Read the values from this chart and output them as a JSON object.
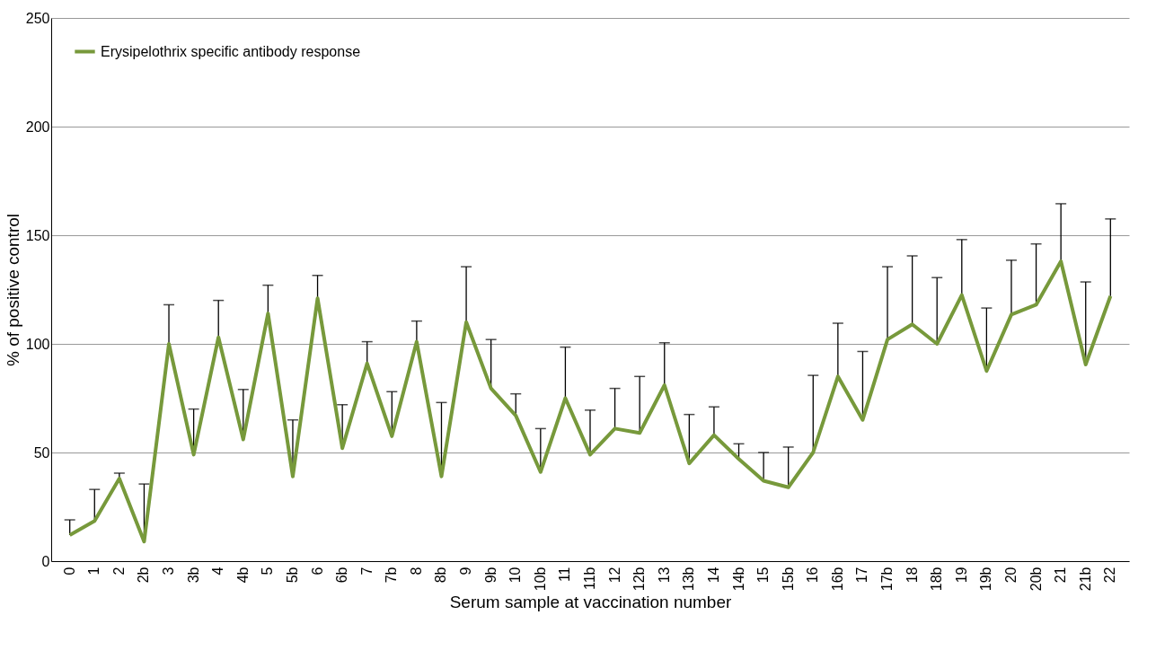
{
  "chart_data": {
    "type": "line",
    "xlabel": "Serum sample at vaccination number",
    "ylabel": "% of positive control",
    "categories": [
      "0",
      "1",
      "2",
      "2b",
      "3",
      "3b",
      "4",
      "4b",
      "5",
      "5b",
      "6",
      "6b",
      "7",
      "7b",
      "8",
      "8b",
      "9",
      "9b",
      "10",
      "10b",
      "11",
      "11b",
      "12",
      "12b",
      "13",
      "13b",
      "14",
      "14b",
      "15",
      "15b",
      "16",
      "16b",
      "17",
      "17b",
      "18",
      "18b",
      "19",
      "19b",
      "20",
      "20b",
      "21",
      "21b",
      "22"
    ],
    "series": [
      {
        "name": "Erysipelothrix specific antibody response",
        "color": "#77993b",
        "values": [
          12,
          18.5,
          38,
          9,
          100,
          49,
          103,
          56,
          114,
          39,
          121,
          52,
          91,
          57.5,
          101,
          39,
          110,
          79.5,
          67,
          41,
          75,
          49,
          61,
          59,
          81,
          45,
          58,
          47,
          37,
          34,
          50,
          85,
          65,
          102,
          109,
          100,
          122.5,
          87.5,
          113.5,
          118,
          138,
          90.5,
          122
        ],
        "errors": [
          [
            12,
            19
          ],
          [
            18.5,
            33
          ],
          [
            38,
            40.5
          ],
          [
            9,
            35.5
          ],
          [
            100,
            118
          ],
          [
            49,
            70
          ],
          [
            103,
            120
          ],
          [
            56,
            79
          ],
          [
            114,
            127
          ],
          [
            39,
            65
          ],
          [
            121,
            131.5
          ],
          [
            52,
            72
          ],
          [
            91,
            101
          ],
          [
            57.5,
            78
          ],
          [
            101,
            110.5
          ],
          [
            39,
            73
          ],
          [
            110,
            135.5
          ],
          [
            79.5,
            102
          ],
          [
            67,
            77
          ],
          [
            41,
            61
          ],
          [
            75,
            98.5
          ],
          [
            49,
            69.5
          ],
          [
            61,
            79.5
          ],
          [
            59,
            85
          ],
          [
            81,
            100.5
          ],
          [
            45,
            67.5
          ],
          [
            58,
            71
          ],
          [
            47,
            54
          ],
          [
            37,
            50
          ],
          [
            34,
            52.5
          ],
          [
            50,
            85.5
          ],
          [
            85,
            109.5
          ],
          [
            65,
            96.5
          ],
          [
            102,
            135.5
          ],
          [
            109,
            140.5
          ],
          [
            100,
            130.5
          ],
          [
            122.5,
            148
          ],
          [
            87.5,
            116.5
          ],
          [
            113.5,
            138.5
          ],
          [
            118,
            146
          ],
          [
            138,
            164.5
          ],
          [
            90.5,
            128.5
          ],
          [
            122,
            157.5
          ]
        ]
      }
    ],
    "ylim": [
      0,
      250
    ],
    "yticks": [
      0,
      50,
      100,
      150,
      200,
      250
    ],
    "grid": "y",
    "legend": "top left",
    "marker": "none",
    "line_style": "solid"
  }
}
